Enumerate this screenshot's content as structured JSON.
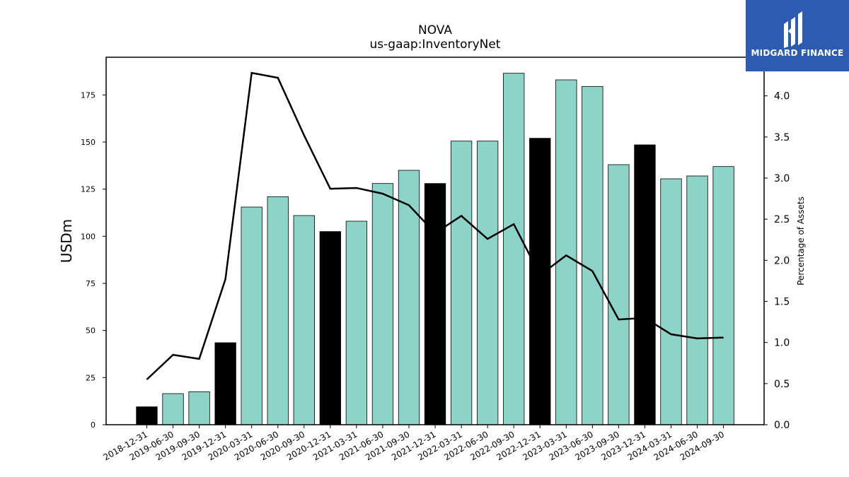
{
  "chart_data": {
    "type": "bar",
    "title": "NOVA",
    "subtitle": "us-gaap:InventoryNet",
    "ylabel": "USDm",
    "ylabel_right": "Percentage of Assets",
    "ylim": [
      0,
      195
    ],
    "ylim_right": [
      0,
      4.47
    ],
    "yticks": [
      0,
      25,
      50,
      75,
      100,
      125,
      150,
      175
    ],
    "yticks_right": [
      "0.0",
      "0.5",
      "1.0",
      "1.5",
      "2.0",
      "2.5",
      "3.0",
      "3.5",
      "4.0"
    ],
    "categories": [
      "2018-12-31",
      "2019-06-30",
      "2019-09-30",
      "2019-12-31",
      "2020-03-31",
      "2020-06-30",
      "2020-09-30",
      "2020-12-31",
      "2021-03-31",
      "2021-06-30",
      "2021-09-30",
      "2021-12-31",
      "2022-03-31",
      "2022-06-30",
      "2022-09-30",
      "2022-12-31",
      "2023-03-31",
      "2023-06-30",
      "2023-09-30",
      "2023-12-31",
      "2024-03-31",
      "2024-06-30",
      "2024-09-30"
    ],
    "series": [
      {
        "type": "bar",
        "values": [
          9.5,
          16.5,
          17.5,
          43.5,
          115.5,
          121,
          111,
          102.5,
          108,
          128,
          135,
          128,
          150.5,
          150.5,
          186.5,
          152,
          183,
          179.5,
          138,
          148.5,
          130.5,
          132,
          137
        ],
        "annual": [
          true,
          false,
          false,
          true,
          false,
          false,
          false,
          true,
          false,
          false,
          false,
          true,
          false,
          false,
          false,
          true,
          false,
          false,
          false,
          true,
          false,
          false,
          false
        ]
      },
      {
        "type": "line",
        "axis": "right",
        "values": [
          0.55,
          0.85,
          0.8,
          1.77,
          4.28,
          4.22,
          3.52,
          2.87,
          2.88,
          2.81,
          2.67,
          2.33,
          2.54,
          2.26,
          2.44,
          1.82,
          2.06,
          1.87,
          1.28,
          1.3,
          1.1,
          1.05,
          1.06
        ]
      }
    ],
    "colors": {
      "annual_bar": "#000000",
      "quarter_bar": "#8dd3c7",
      "bar_edge": "#000000",
      "line": "#000000"
    },
    "grid": false,
    "legend": "none"
  },
  "logo": {
    "text": "MIDGARD FINANCE",
    "background": "#2c5bb0"
  }
}
